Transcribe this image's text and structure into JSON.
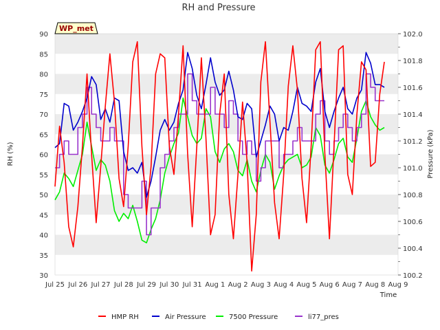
{
  "chart_data": {
    "type": "line",
    "title": "RH and Pressure",
    "xlabel": "Time",
    "ylabel": "RH (%)",
    "y2label": "Pressure (kPa)",
    "badge": "WP_met",
    "xlim": [
      0,
      15
    ],
    "ylim": [
      30,
      90
    ],
    "y2lim": [
      100.2,
      102.0
    ],
    "grid": "horizontal bands",
    "legend_position": "bottom",
    "x_tick_labels": [
      "Jul 25",
      "Jul 26",
      "Jul 27",
      "Jul 28",
      "Jul 29",
      "Jul 30",
      "Jul 31",
      "Aug 1",
      "Aug 2",
      "Aug 3",
      "Aug 4",
      "Aug 5",
      "Aug 6",
      "Aug 7",
      "Aug 8",
      "Aug 9"
    ],
    "y_ticks": [
      30,
      35,
      40,
      45,
      50,
      55,
      60,
      65,
      70,
      75,
      80,
      85,
      90
    ],
    "y2_ticks": [
      100.2,
      100.4,
      100.6,
      100.8,
      101.0,
      101.2,
      101.4,
      101.6,
      101.8,
      102.0
    ],
    "colors": {
      "HMP RH": "#ff0000",
      "Air Pressure": "#0000cc",
      "7500 Pressure": "#00ee00",
      "li77_pres": "#9933cc",
      "band": "#ececec",
      "badge_bg": "#ffffcc"
    },
    "series": [
      {
        "name": "HMP RH",
        "axis": "left",
        "x": [
          0.0,
          0.2,
          0.4,
          0.6,
          0.8,
          1.0,
          1.2,
          1.4,
          1.6,
          1.8,
          2.0,
          2.2,
          2.4,
          2.6,
          2.8,
          3.0,
          3.2,
          3.4,
          3.6,
          3.8,
          4.0,
          4.2,
          4.4,
          4.6,
          4.8,
          5.0,
          5.2,
          5.4,
          5.6,
          5.8,
          6.0,
          6.2,
          6.4,
          6.6,
          6.8,
          7.0,
          7.2,
          7.4,
          7.6,
          7.8,
          8.0,
          8.2,
          8.4,
          8.6,
          8.8,
          9.0,
          9.2,
          9.4,
          9.6,
          9.8,
          10.0,
          10.2,
          10.4,
          10.6,
          10.8,
          11.0,
          11.2,
          11.4,
          11.6,
          11.8,
          12.0,
          12.2,
          12.4,
          12.6,
          12.8,
          13.0,
          13.2,
          13.4,
          13.6,
          13.8,
          14.0,
          14.2,
          14.4
        ],
        "values": [
          52,
          67,
          58,
          42,
          37,
          47,
          62,
          80,
          60,
          43,
          57,
          72,
          85,
          73,
          54,
          47,
          62,
          83,
          88,
          62,
          45,
          57,
          80,
          85,
          84,
          62,
          55,
          70,
          87,
          60,
          42,
          62,
          84,
          64,
          40,
          45,
          70,
          80,
          50,
          39,
          55,
          73,
          58,
          31,
          45,
          78,
          88,
          68,
          48,
          39,
          55,
          77,
          87,
          76,
          54,
          43,
          62,
          86,
          88,
          60,
          39,
          62,
          86,
          87,
          55,
          50,
          70,
          83,
          81,
          57,
          58,
          75,
          83
        ]
      },
      {
        "name": "Air Pressure",
        "axis": "right",
        "x": [
          0.0,
          0.2,
          0.4,
          0.6,
          0.8,
          1.0,
          1.2,
          1.4,
          1.6,
          1.8,
          2.0,
          2.2,
          2.4,
          2.6,
          2.8,
          3.0,
          3.2,
          3.4,
          3.6,
          3.8,
          4.0,
          4.2,
          4.4,
          4.6,
          4.8,
          5.0,
          5.2,
          5.4,
          5.6,
          5.8,
          6.0,
          6.2,
          6.4,
          6.6,
          6.8,
          7.0,
          7.2,
          7.4,
          7.6,
          7.8,
          8.0,
          8.2,
          8.4,
          8.6,
          8.8,
          9.0,
          9.2,
          9.4,
          9.6,
          9.8,
          10.0,
          10.2,
          10.4,
          10.6,
          10.8,
          11.0,
          11.2,
          11.4,
          11.6,
          11.8,
          12.0,
          12.2,
          12.4,
          12.6,
          12.8,
          13.0,
          13.2,
          13.4,
          13.6,
          13.8,
          14.0,
          14.2,
          14.4
        ],
        "values": [
          101.15,
          101.18,
          101.48,
          101.46,
          101.28,
          101.34,
          101.42,
          101.52,
          101.68,
          101.62,
          101.36,
          101.44,
          101.34,
          101.52,
          101.5,
          101.12,
          100.98,
          101.0,
          100.96,
          101.04,
          100.78,
          100.9,
          101.08,
          101.28,
          101.36,
          101.28,
          101.34,
          101.48,
          101.58,
          101.86,
          101.74,
          101.54,
          101.44,
          101.62,
          101.82,
          101.64,
          101.54,
          101.58,
          101.72,
          101.58,
          101.38,
          101.36,
          101.48,
          101.44,
          101.08,
          101.2,
          101.32,
          101.46,
          101.4,
          101.2,
          101.3,
          101.28,
          101.42,
          101.6,
          101.48,
          101.46,
          101.42,
          101.64,
          101.74,
          101.42,
          101.3,
          101.42,
          101.52,
          101.6,
          101.44,
          101.4,
          101.52,
          101.58,
          101.86,
          101.78,
          101.62,
          101.62,
          101.6
        ]
      },
      {
        "name": "7500 Pressure",
        "axis": "right",
        "x": [
          0.0,
          0.2,
          0.4,
          0.6,
          0.8,
          1.0,
          1.2,
          1.4,
          1.6,
          1.8,
          2.0,
          2.2,
          2.4,
          2.6,
          2.8,
          3.0,
          3.2,
          3.4,
          3.6,
          3.8,
          4.0,
          4.2,
          4.4,
          4.6,
          4.8,
          5.0,
          5.2,
          5.4,
          5.6,
          5.8,
          6.0,
          6.2,
          6.4,
          6.6,
          6.8,
          7.0,
          7.2,
          7.4,
          7.6,
          7.8,
          8.0,
          8.2,
          8.4,
          8.6,
          8.8,
          9.0,
          9.2,
          9.4,
          9.6,
          9.8,
          10.0,
          10.2,
          10.4,
          10.6,
          10.8,
          11.0,
          11.2,
          11.4,
          11.6,
          11.8,
          12.0,
          12.2,
          12.4,
          12.6,
          12.8,
          13.0,
          13.2,
          13.4,
          13.6,
          13.8,
          14.0,
          14.2,
          14.4
        ],
        "values": [
          100.76,
          100.82,
          100.96,
          100.92,
          100.86,
          100.98,
          101.1,
          101.34,
          101.16,
          100.98,
          101.06,
          101.02,
          100.9,
          100.68,
          100.6,
          100.66,
          100.62,
          100.72,
          100.6,
          100.46,
          100.44,
          100.54,
          100.62,
          100.76,
          100.96,
          101.08,
          101.18,
          101.26,
          101.52,
          101.38,
          101.24,
          101.18,
          101.22,
          101.44,
          101.38,
          101.12,
          101.04,
          101.14,
          101.18,
          101.12,
          100.98,
          100.94,
          101.06,
          100.9,
          100.82,
          100.98,
          101.1,
          101.04,
          100.84,
          100.94,
          101.02,
          101.06,
          101.08,
          101.1,
          101.0,
          101.02,
          101.08,
          101.3,
          101.24,
          101.02,
          100.96,
          101.06,
          101.18,
          101.22,
          101.08,
          101.04,
          101.22,
          101.42,
          101.5,
          101.38,
          101.32,
          101.28,
          101.3
        ]
      },
      {
        "name": "li77_pres",
        "axis": "right",
        "x": [
          0.0,
          0.2,
          0.4,
          0.6,
          0.8,
          1.0,
          1.2,
          1.4,
          1.6,
          1.8,
          2.0,
          2.2,
          2.4,
          2.6,
          2.8,
          3.0,
          3.2,
          3.4,
          3.6,
          3.8,
          4.0,
          4.2,
          4.4,
          4.6,
          4.8,
          5.0,
          5.2,
          5.4,
          5.6,
          5.8,
          6.0,
          6.2,
          6.4,
          6.6,
          6.8,
          7.0,
          7.2,
          7.4,
          7.6,
          7.8,
          8.0,
          8.2,
          8.4,
          8.6,
          8.8,
          9.0,
          9.2,
          9.4,
          9.6,
          9.8,
          10.0,
          10.2,
          10.4,
          10.6,
          10.8,
          11.0,
          11.2,
          11.4,
          11.6,
          11.8,
          12.0,
          12.2,
          12.4,
          12.6,
          12.8,
          13.0,
          13.2,
          13.4,
          13.6,
          13.8,
          14.0,
          14.2,
          14.4
        ],
        "values": [
          101.0,
          101.1,
          101.2,
          101.1,
          101.1,
          101.3,
          101.4,
          101.6,
          101.4,
          101.3,
          101.2,
          101.2,
          101.3,
          101.2,
          101.2,
          100.8,
          100.7,
          100.7,
          100.7,
          100.9,
          100.5,
          100.7,
          100.7,
          101.0,
          101.1,
          101.2,
          101.3,
          101.4,
          101.4,
          101.7,
          101.5,
          101.4,
          101.4,
          101.4,
          101.6,
          101.4,
          101.4,
          101.3,
          101.5,
          101.4,
          101.2,
          101.1,
          101.2,
          101.1,
          100.9,
          101.0,
          101.2,
          101.2,
          101.2,
          101.0,
          101.1,
          101.1,
          101.2,
          101.3,
          101.2,
          101.2,
          101.2,
          101.4,
          101.5,
          101.2,
          101.1,
          101.2,
          101.3,
          101.4,
          101.3,
          101.2,
          101.3,
          101.4,
          101.7,
          101.6,
          101.5,
          101.5,
          101.5
        ]
      }
    ]
  }
}
